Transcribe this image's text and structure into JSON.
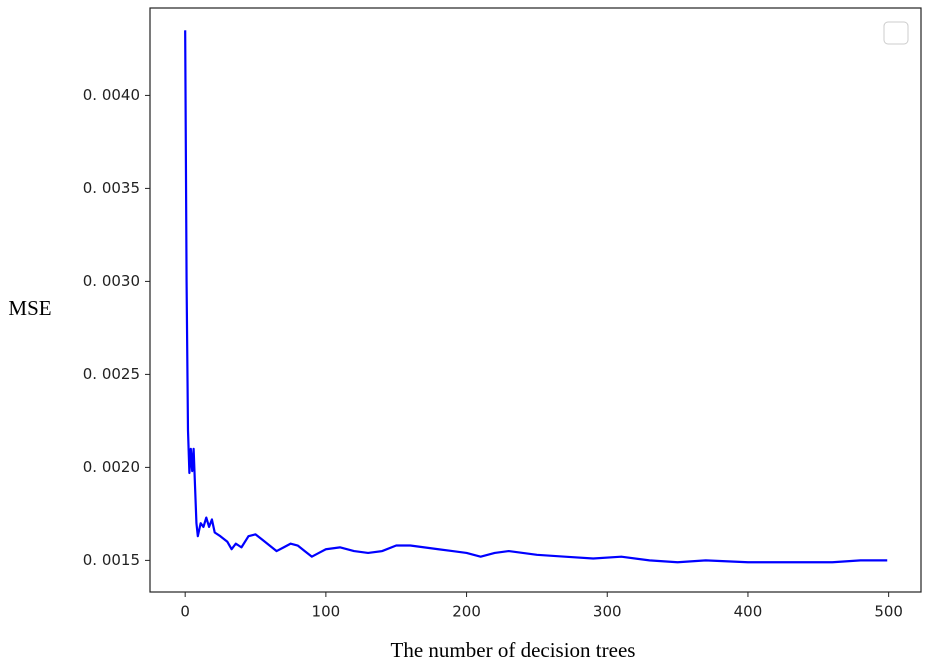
{
  "chart_data": {
    "type": "line",
    "x_label": "The number of decision trees",
    "y_label": "MSE",
    "xlim": [
      -25,
      523
    ],
    "xticks": [
      0,
      100,
      200,
      300,
      400,
      500
    ],
    "ylim": [
      0.00133,
      0.00447
    ],
    "yticks": [
      {
        "value": 0.0015,
        "label": "0. 0015"
      },
      {
        "value": 0.002,
        "label": "0. 0020"
      },
      {
        "value": 0.0025,
        "label": "0. 0025"
      },
      {
        "value": 0.003,
        "label": "0. 0030"
      },
      {
        "value": 0.0035,
        "label": "0. 0035"
      },
      {
        "value": 0.004,
        "label": "0. 0040"
      }
    ],
    "x": [
      0,
      1,
      2,
      3,
      4,
      5,
      6,
      7,
      8,
      9,
      11,
      13,
      15,
      17,
      19,
      21,
      25,
      30,
      33,
      36,
      40,
      45,
      50,
      55,
      60,
      65,
      70,
      75,
      80,
      85,
      90,
      95,
      100,
      110,
      120,
      130,
      140,
      150,
      160,
      170,
      180,
      190,
      200,
      210,
      220,
      230,
      240,
      250,
      270,
      290,
      310,
      330,
      350,
      370,
      400,
      430,
      460,
      480,
      499
    ],
    "series": [
      {
        "color": "#0000ff",
        "values": [
          0.00435,
          0.003,
          0.0022,
          0.00197,
          0.0021,
          0.00198,
          0.0021,
          0.0019,
          0.0017,
          0.00163,
          0.0017,
          0.00168,
          0.00173,
          0.00168,
          0.00172,
          0.00165,
          0.00163,
          0.0016,
          0.00156,
          0.00159,
          0.00157,
          0.00163,
          0.00164,
          0.00161,
          0.00158,
          0.00155,
          0.00157,
          0.00159,
          0.00158,
          0.00155,
          0.00152,
          0.00154,
          0.00156,
          0.00157,
          0.00155,
          0.00154,
          0.00155,
          0.00158,
          0.00158,
          0.00157,
          0.00156,
          0.00155,
          0.00154,
          0.00152,
          0.00154,
          0.00155,
          0.00154,
          0.00153,
          0.00152,
          0.00151,
          0.00152,
          0.0015,
          0.00149,
          0.0015,
          0.00149,
          0.00149,
          0.00149,
          0.0015,
          0.0015
        ]
      }
    ]
  }
}
